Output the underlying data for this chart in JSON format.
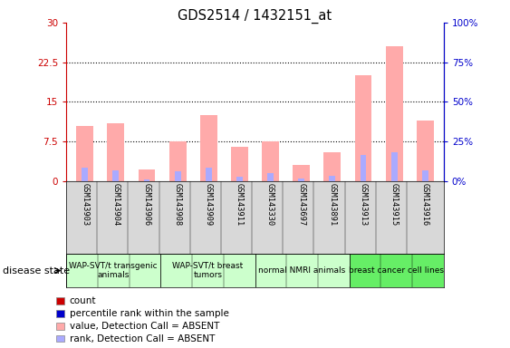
{
  "title": "GDS2514 / 1432151_at",
  "samples": [
    "GSM143903",
    "GSM143904",
    "GSM143906",
    "GSM143908",
    "GSM143909",
    "GSM143911",
    "GSM143330",
    "GSM143697",
    "GSM143891",
    "GSM143913",
    "GSM143915",
    "GSM143916"
  ],
  "pink_values": [
    10.5,
    11.0,
    2.2,
    7.5,
    12.5,
    6.5,
    7.5,
    3.0,
    5.5,
    20.0,
    25.5,
    11.5
  ],
  "blue_values": [
    2.5,
    2.0,
    0.3,
    1.8,
    2.5,
    0.8,
    1.5,
    0.5,
    1.0,
    5.0,
    5.5,
    2.0
  ],
  "ylim_left": [
    0,
    30
  ],
  "ylim_right": [
    0,
    100
  ],
  "yticks_left": [
    0,
    7.5,
    15,
    22.5,
    30
  ],
  "yticks_right": [
    0,
    25,
    50,
    75,
    100
  ],
  "ytick_labels_left": [
    "0",
    "7.5",
    "15",
    "22.5",
    "30"
  ],
  "ytick_labels_right": [
    "0%",
    "25%",
    "50%",
    "75%",
    "100%"
  ],
  "groups": [
    {
      "label": "WAP-SVT/t transgenic\nanimals",
      "start": 0,
      "end": 3
    },
    {
      "label": "WAP-SVT/t breast\ntumors",
      "start": 3,
      "end": 6
    },
    {
      "label": "normal NMRI animals",
      "start": 6,
      "end": 9
    },
    {
      "label": "breast cancer cell lines",
      "start": 9,
      "end": 12
    }
  ],
  "group_colors": [
    "#ccffcc",
    "#ccffcc",
    "#ccffcc",
    "#66ee66"
  ],
  "disease_state_label": "disease state",
  "legend_items": [
    {
      "color": "#cc0000",
      "label": "count"
    },
    {
      "color": "#0000cc",
      "label": "percentile rank within the sample"
    },
    {
      "color": "#ffaaaa",
      "label": "value, Detection Call = ABSENT"
    },
    {
      "color": "#aaaaff",
      "label": "rank, Detection Call = ABSENT"
    }
  ],
  "left_axis_color": "#cc0000",
  "right_axis_color": "#0000cc",
  "bar_width": 0.55,
  "blue_bar_width": 0.2,
  "bg_color": "#d8d8d8",
  "plot_bg": "#ffffff",
  "figsize": [
    5.63,
    3.84
  ],
  "dpi": 100
}
